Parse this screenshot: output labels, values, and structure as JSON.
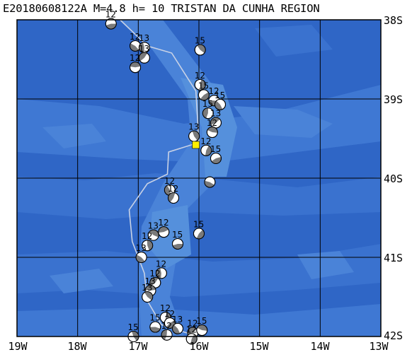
{
  "title": "E20180608122A  M=4.8  h= 10 TRISTAN DA CUNHA REGION",
  "colors": {
    "ocean_deep": "#2f66c6",
    "ocean_mid": "#3f78d3",
    "ocean_shallow": "#5590dc",
    "grid": "#000000",
    "track": "#c8d2e6",
    "epicenter": "#ffee00",
    "mechanism_dark": "#7a7a7a",
    "mechanism_light": "#ffffff"
  },
  "map": {
    "lon_range": [
      -19,
      -13
    ],
    "lat_range": [
      -42,
      -38
    ],
    "lat_labels": [
      "38S",
      "39S",
      "40S",
      "41S",
      "42S"
    ],
    "lon_labels": [
      "19W",
      "18W",
      "17W",
      "16W",
      "15W",
      "14W",
      "13W"
    ],
    "epicenter": {
      "lon": -16.05,
      "lat": -39.58
    },
    "track": [
      [
        -17.3,
        -38.0
      ],
      [
        -16.85,
        -38.33
      ],
      [
        -16.45,
        -38.42
      ],
      [
        -16.05,
        -38.9
      ],
      [
        -16.0,
        -39.55
      ],
      [
        -16.5,
        -39.67
      ],
      [
        -16.52,
        -39.95
      ],
      [
        -16.85,
        -40.07
      ],
      [
        -17.15,
        -40.4
      ],
      [
        -17.1,
        -40.8
      ],
      [
        -16.9,
        -41.2
      ],
      [
        -16.85,
        -41.55
      ],
      [
        -16.62,
        -41.85
      ],
      [
        -16.35,
        -41.92
      ],
      [
        -16.0,
        -42.0
      ]
    ],
    "mechanisms": [
      {
        "lon": -17.45,
        "lat": -38.05,
        "label": "12"
      },
      {
        "lon": -17.05,
        "lat": -38.33,
        "label": "12"
      },
      {
        "lon": -16.9,
        "lat": -38.35,
        "label": "13"
      },
      {
        "lon": -16.9,
        "lat": -38.48,
        "label": "13"
      },
      {
        "lon": -17.05,
        "lat": -38.6,
        "label": "12"
      },
      {
        "lon": -15.98,
        "lat": -38.38,
        "label": "15"
      },
      {
        "lon": -15.98,
        "lat": -38.82,
        "label": "12"
      },
      {
        "lon": -15.92,
        "lat": -38.95,
        "label": "15"
      },
      {
        "lon": -15.75,
        "lat": -39.02,
        "label": "12"
      },
      {
        "lon": -15.65,
        "lat": -39.07,
        "label": "15"
      },
      {
        "lon": -15.85,
        "lat": -39.18,
        "label": "15"
      },
      {
        "lon": -15.72,
        "lat": -39.3,
        "label": "13"
      },
      {
        "lon": -15.78,
        "lat": -39.42,
        "label": "12"
      },
      {
        "lon": -16.08,
        "lat": -39.47,
        "label": "13"
      },
      {
        "lon": -15.88,
        "lat": -39.65,
        "label": "12"
      },
      {
        "lon": -15.72,
        "lat": -39.75,
        "label": "15"
      },
      {
        "lon": -15.82,
        "lat": -40.05,
        "label": ""
      },
      {
        "lon": -16.48,
        "lat": -40.15,
        "label": "12"
      },
      {
        "lon": -16.42,
        "lat": -40.25,
        "label": "12"
      },
      {
        "lon": -16.58,
        "lat": -40.68,
        "label": "12"
      },
      {
        "lon": -16.75,
        "lat": -40.72,
        "label": "13"
      },
      {
        "lon": -16.85,
        "lat": -40.85,
        "label": "12"
      },
      {
        "lon": -16.0,
        "lat": -40.7,
        "label": "15"
      },
      {
        "lon": -16.35,
        "lat": -40.83,
        "label": "15"
      },
      {
        "lon": -16.95,
        "lat": -41.0,
        "label": "13"
      },
      {
        "lon": -16.62,
        "lat": -41.2,
        "label": "12"
      },
      {
        "lon": -16.72,
        "lat": -41.32,
        "label": "12"
      },
      {
        "lon": -16.8,
        "lat": -41.42,
        "label": "13"
      },
      {
        "lon": -16.85,
        "lat": -41.5,
        "label": "13"
      },
      {
        "lon": -16.55,
        "lat": -41.76,
        "label": "12"
      },
      {
        "lon": -16.48,
        "lat": -41.83,
        "label": "12"
      },
      {
        "lon": -16.72,
        "lat": -41.88,
        "label": "15"
      },
      {
        "lon": -16.35,
        "lat": -41.9,
        "label": "13"
      },
      {
        "lon": -16.53,
        "lat": -41.98,
        "label": "12"
      },
      {
        "lon": -16.1,
        "lat": -41.95,
        "label": "12"
      },
      {
        "lon": -15.95,
        "lat": -41.92,
        "label": "15"
      },
      {
        "lon": -17.08,
        "lat": -42.0,
        "label": "15"
      },
      {
        "lon": -16.12,
        "lat": -42.03,
        "label": "12"
      }
    ]
  }
}
